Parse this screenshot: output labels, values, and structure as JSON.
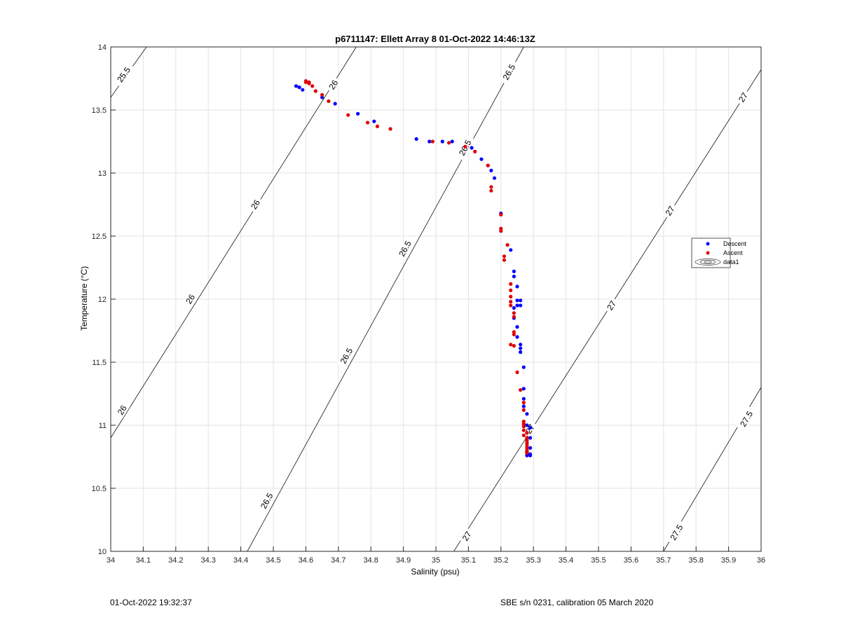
{
  "chart_data": {
    "type": "scatter",
    "title": "p6711147: Ellett Array 8 01-Oct-2022 14:46:13Z",
    "xlabel": "Salinity (psu)",
    "ylabel": "Temperature (°C)",
    "xlim": [
      34,
      36
    ],
    "ylim": [
      10,
      14
    ],
    "xticks": [
      34,
      34.1,
      34.2,
      34.3,
      34.4,
      34.5,
      34.6,
      34.7,
      34.8,
      34.9,
      35,
      35.1,
      35.2,
      35.3,
      35.4,
      35.5,
      35.6,
      35.7,
      35.8,
      35.9,
      36
    ],
    "xtick_labels": [
      "34",
      "34.1",
      "34.2",
      "34.3",
      "34.4",
      "34.5",
      "34.6",
      "34.7",
      "34.8",
      "34.9",
      "35",
      "35.1",
      "35.2",
      "35.3",
      "35.4",
      "35.5",
      "35.6",
      "35.7",
      "35.8",
      "35.9",
      "36"
    ],
    "yticks": [
      10,
      10.5,
      11,
      11.5,
      12,
      12.5,
      13,
      13.5,
      14
    ],
    "ytick_labels": [
      "10",
      "10.5",
      "11",
      "11.5",
      "12",
      "12.5",
      "13",
      "13.5",
      "14"
    ],
    "grid": true,
    "legend_position": "right",
    "legend": [
      {
        "label": "Descent",
        "marker": "dot",
        "color": "#0000ff"
      },
      {
        "label": "Ascent",
        "marker": "dot",
        "color": "#e00000"
      },
      {
        "label": "data1",
        "marker": "contour"
      }
    ],
    "contours": [
      {
        "label": "25.5",
        "points": [
          [
            34,
            13.6
          ],
          [
            34.11,
            14
          ]
        ],
        "label_positions": [
          [
            34.04,
            13.78
          ]
        ]
      },
      {
        "label": "26",
        "points": [
          [
            34,
            10.9
          ],
          [
            34.755,
            14
          ]
        ],
        "label_positions": [
          [
            34.685,
            13.7
          ],
          [
            34.445,
            12.75
          ],
          [
            34.245,
            12.0
          ],
          [
            34.035,
            11.12
          ]
        ]
      },
      {
        "label": "26.5",
        "points": [
          [
            34.42,
            10
          ],
          [
            35.27,
            14
          ]
        ],
        "label_positions": [
          [
            35.225,
            13.8
          ],
          [
            35.09,
            13.2
          ],
          [
            34.905,
            12.4
          ],
          [
            34.725,
            11.55
          ],
          [
            34.48,
            10.4
          ]
        ]
      },
      {
        "label": "27",
        "points": [
          [
            35.055,
            10
          ],
          [
            36,
            13.82
          ]
        ],
        "label_positions": [
          [
            35.945,
            13.6
          ],
          [
            35.72,
            12.7
          ],
          [
            35.54,
            11.95
          ],
          [
            35.29,
            10.97
          ],
          [
            35.095,
            10.12
          ]
        ]
      },
      {
        "label": "27.5",
        "points": [
          [
            35.7,
            10
          ],
          [
            36,
            11.3
          ]
        ],
        "label_positions": [
          [
            35.955,
            11.05
          ],
          [
            35.74,
            10.15
          ]
        ]
      }
    ],
    "series": [
      {
        "name": "Descent",
        "color": "#0000ff",
        "points": [
          [
            34.57,
            13.69
          ],
          [
            34.58,
            13.68
          ],
          [
            34.59,
            13.66
          ],
          [
            34.65,
            13.6
          ],
          [
            34.69,
            13.55
          ],
          [
            34.76,
            13.47
          ],
          [
            34.81,
            13.41
          ],
          [
            34.94,
            13.27
          ],
          [
            34.98,
            13.25
          ],
          [
            35.02,
            13.25
          ],
          [
            35.05,
            13.25
          ],
          [
            35.11,
            13.2
          ],
          [
            35.14,
            13.11
          ],
          [
            35.16,
            13.06
          ],
          [
            35.17,
            13.02
          ],
          [
            35.18,
            12.96
          ],
          [
            35.2,
            12.68
          ],
          [
            35.23,
            12.39
          ],
          [
            35.24,
            12.22
          ],
          [
            35.24,
            12.18
          ],
          [
            35.25,
            12.1
          ],
          [
            35.25,
            11.99
          ],
          [
            35.26,
            11.99
          ],
          [
            35.26,
            11.95
          ],
          [
            35.25,
            11.95
          ],
          [
            35.24,
            11.93
          ],
          [
            35.24,
            11.85
          ],
          [
            35.25,
            11.78
          ],
          [
            35.25,
            11.7
          ],
          [
            35.26,
            11.64
          ],
          [
            35.26,
            11.61
          ],
          [
            35.26,
            11.58
          ],
          [
            35.27,
            11.46
          ],
          [
            35.27,
            11.29
          ],
          [
            35.27,
            11.21
          ],
          [
            35.27,
            11.15
          ],
          [
            35.28,
            11.09
          ],
          [
            35.28,
            11.0
          ],
          [
            35.29,
            10.98
          ],
          [
            35.28,
            10.94
          ],
          [
            35.29,
            10.9
          ],
          [
            35.28,
            10.86
          ],
          [
            35.29,
            10.82
          ],
          [
            35.28,
            10.79
          ],
          [
            35.29,
            10.77
          ],
          [
            35.28,
            10.76
          ],
          [
            35.29,
            10.76
          ],
          [
            35.28,
            10.78
          ]
        ]
      },
      {
        "name": "Ascent",
        "color": "#e00000",
        "points": [
          [
            34.6,
            13.73
          ],
          [
            34.6,
            13.72
          ],
          [
            34.61,
            13.72
          ],
          [
            34.61,
            13.71
          ],
          [
            34.62,
            13.69
          ],
          [
            34.63,
            13.65
          ],
          [
            34.65,
            13.62
          ],
          [
            34.67,
            13.57
          ],
          [
            34.73,
            13.46
          ],
          [
            34.79,
            13.4
          ],
          [
            34.82,
            13.37
          ],
          [
            34.86,
            13.35
          ],
          [
            34.99,
            13.25
          ],
          [
            35.04,
            13.24
          ],
          [
            35.09,
            13.21
          ],
          [
            35.12,
            13.17
          ],
          [
            35.16,
            13.06
          ],
          [
            35.17,
            12.89
          ],
          [
            35.17,
            12.86
          ],
          [
            35.2,
            12.67
          ],
          [
            35.2,
            12.56
          ],
          [
            35.2,
            12.54
          ],
          [
            35.22,
            12.43
          ],
          [
            35.21,
            12.34
          ],
          [
            35.21,
            12.31
          ],
          [
            35.23,
            12.12
          ],
          [
            35.23,
            12.07
          ],
          [
            35.23,
            12.02
          ],
          [
            35.23,
            11.98
          ],
          [
            35.23,
            11.95
          ],
          [
            35.24,
            11.89
          ],
          [
            35.24,
            11.86
          ],
          [
            35.24,
            11.74
          ],
          [
            35.24,
            11.72
          ],
          [
            35.23,
            11.64
          ],
          [
            35.24,
            11.63
          ],
          [
            35.25,
            11.42
          ],
          [
            35.26,
            11.28
          ],
          [
            35.27,
            11.18
          ],
          [
            35.27,
            11.12
          ],
          [
            35.27,
            11.03
          ],
          [
            35.27,
            11.01
          ],
          [
            35.27,
            10.99
          ],
          [
            35.27,
            10.96
          ],
          [
            35.28,
            10.94
          ],
          [
            35.27,
            10.92
          ],
          [
            35.28,
            10.9
          ],
          [
            35.28,
            10.88
          ],
          [
            35.28,
            10.86
          ],
          [
            35.28,
            10.84
          ],
          [
            35.28,
            10.82
          ],
          [
            35.28,
            10.8
          ],
          [
            35.28,
            10.78
          ]
        ]
      }
    ]
  },
  "footer": {
    "left": "01-Oct-2022 19:32:37",
    "right": "SBE s/n 0231, calibration 05 March 2020"
  }
}
